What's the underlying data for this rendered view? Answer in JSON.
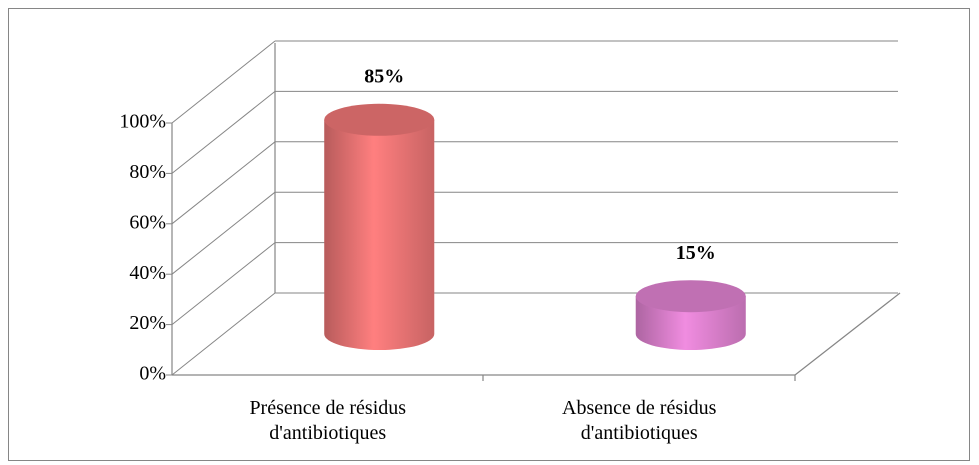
{
  "chart_data": {
    "type": "bar3d",
    "categories": [
      "Présence de résidus d'antibiotiques",
      "Absence de résidus d'antibiotiques"
    ],
    "values": [
      85,
      15
    ],
    "value_labels": [
      "85%",
      "15%"
    ],
    "colors": [
      "#ff7f7f",
      "#f08ce0"
    ],
    "ylim": [
      0,
      100
    ],
    "yticks": [
      {
        "value": 0,
        "label": "0%"
      },
      {
        "value": 20,
        "label": "20%"
      },
      {
        "value": 40,
        "label": "40%"
      },
      {
        "value": 60,
        "label": "60%"
      },
      {
        "value": 80,
        "label": "80%"
      },
      {
        "value": 100,
        "label": "100%"
      }
    ],
    "grid": true
  }
}
